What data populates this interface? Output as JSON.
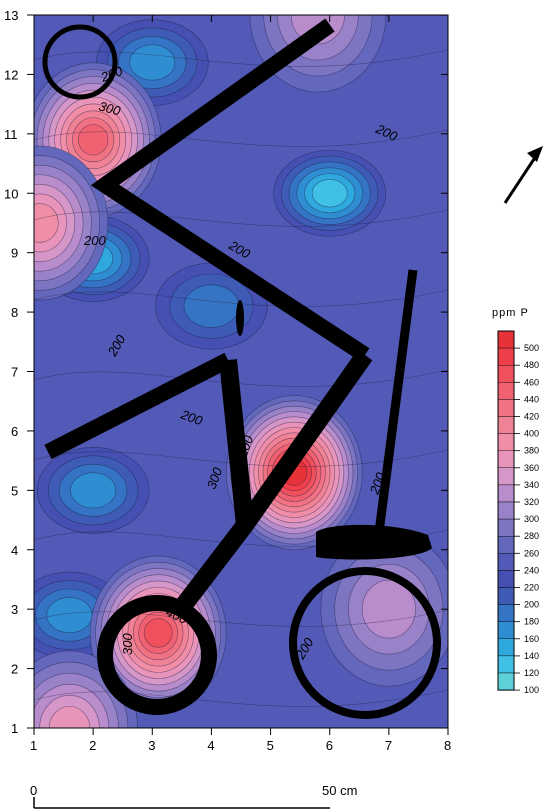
{
  "chart_data": {
    "type": "heatmap",
    "subtype": "contour",
    "x_ticks": [
      1,
      2,
      3,
      4,
      5,
      6,
      7,
      8
    ],
    "y_ticks": [
      1,
      2,
      3,
      4,
      5,
      6,
      7,
      8,
      9,
      10,
      11,
      12,
      13
    ],
    "xlim": [
      1,
      8
    ],
    "ylim": [
      1,
      13
    ],
    "colorbar": {
      "title": "ppm P",
      "levels": [
        500,
        480,
        460,
        440,
        420,
        400,
        380,
        360,
        340,
        320,
        300,
        280,
        260,
        240,
        220,
        200,
        180,
        160,
        140,
        120,
        100
      ],
      "colors": [
        "#e8323a",
        "#ee3f4a",
        "#f0505c",
        "#f06272",
        "#f07283",
        "#f08296",
        "#f08ea8",
        "#e995bb",
        "#d596c8",
        "#b98ccc",
        "#9a82c8",
        "#7d75c2",
        "#6468bd",
        "#5259b6",
        "#4650b2",
        "#3e5cb6",
        "#3574c4",
        "#2f8ed1",
        "#2fa8de",
        "#40c0e4",
        "#5ed0d8"
      ]
    },
    "contour_labels": [
      "200",
      "300",
      "200",
      "200",
      "200",
      "200",
      "200",
      "200",
      "300",
      "200",
      "200",
      "300",
      "400",
      "200"
    ],
    "peaks": [
      {
        "x": 5.4,
        "y": 5.3,
        "value": 500
      },
      {
        "x": 3.1,
        "y": 2.6,
        "value": 460
      },
      {
        "x": 2.0,
        "y": 10.9,
        "value": 440
      },
      {
        "x": 1.1,
        "y": 9.5,
        "value": 380
      },
      {
        "x": 7.0,
        "y": 3.0,
        "value": 320
      },
      {
        "x": 1.6,
        "y": 1.0,
        "value": 360
      },
      {
        "x": 5.8,
        "y": 13.0,
        "value": 320
      }
    ],
    "valleys": [
      {
        "x": 6.0,
        "y": 10.0,
        "value": 120
      },
      {
        "x": 2.0,
        "y": 8.9,
        "value": 140
      },
      {
        "x": 2.0,
        "y": 5.0,
        "value": 160
      },
      {
        "x": 3.0,
        "y": 12.2,
        "value": 160
      },
      {
        "x": 1.6,
        "y": 2.9,
        "value": 160
      },
      {
        "x": 4.0,
        "y": 8.1,
        "value": 180
      }
    ],
    "scale_bar": {
      "start_label": "0",
      "end_label": "50 cm"
    }
  }
}
